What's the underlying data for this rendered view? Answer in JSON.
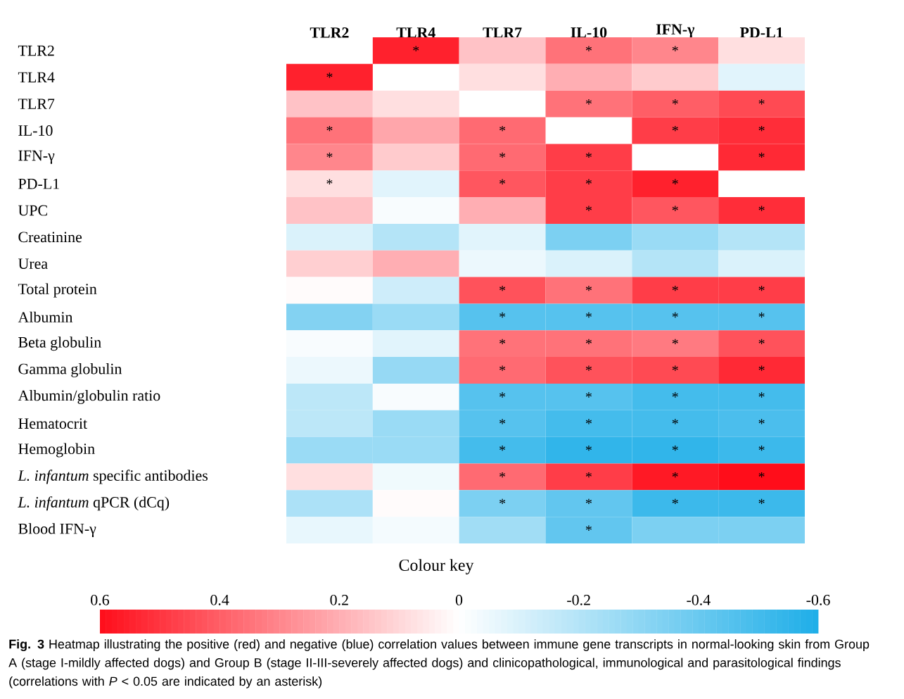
{
  "chart_data": {
    "type": "heatmap",
    "categories": [
      "TLR2",
      "TLR4",
      "TLR7",
      "IL-10",
      "IFN-γ",
      "PD-L1"
    ],
    "y_categories": [
      "TLR2",
      "TLR4",
      "TLR7",
      "IL-10",
      "IFN-γ",
      "PD-L1",
      "UPC",
      "Creatinine",
      "Urea",
      "Total protein",
      "Albumin",
      "Beta globulin",
      "Gamma globulin",
      "Albumin/globulin ratio",
      "Hematocrit",
      "Hemoglobin",
      "*L. infantum* specific antibodies",
      "*L. infantum* qPCR (dCq)",
      "Blood IFN-γ"
    ],
    "cells": [
      [
        null,
        0.55,
        0.15,
        0.35,
        0.3,
        0.08
      ],
      [
        0.55,
        null,
        0.08,
        0.2,
        0.13,
        -0.08
      ],
      [
        0.15,
        0.08,
        null,
        0.35,
        0.4,
        0.45
      ],
      [
        0.35,
        0.22,
        0.37,
        null,
        0.48,
        0.52
      ],
      [
        0.3,
        0.13,
        0.37,
        0.48,
        null,
        0.53
      ],
      [
        0.08,
        -0.08,
        0.42,
        0.48,
        0.55,
        null
      ],
      [
        0.15,
        -0.02,
        0.2,
        0.48,
        0.42,
        0.52
      ],
      [
        -0.1,
        -0.2,
        -0.08,
        -0.35,
        -0.27,
        -0.2
      ],
      [
        0.12,
        0.2,
        -0.05,
        -0.1,
        -0.2,
        -0.1
      ],
      [
        0.01,
        -0.13,
        0.43,
        0.35,
        0.48,
        0.48
      ],
      [
        -0.33,
        -0.27,
        -0.45,
        -0.45,
        -0.45,
        -0.45
      ],
      [
        -0.02,
        -0.08,
        0.35,
        0.35,
        0.33,
        0.43
      ],
      [
        -0.05,
        -0.28,
        0.37,
        0.43,
        0.45,
        0.53
      ],
      [
        -0.18,
        -0.02,
        -0.45,
        -0.45,
        -0.5,
        -0.5
      ],
      [
        -0.18,
        -0.27,
        -0.45,
        -0.5,
        -0.5,
        -0.48
      ],
      [
        -0.27,
        -0.27,
        -0.5,
        -0.55,
        -0.55,
        -0.52
      ],
      [
        0.08,
        -0.04,
        0.37,
        0.48,
        0.57,
        0.6
      ],
      [
        -0.22,
        0.01,
        -0.35,
        -0.42,
        -0.52,
        -0.52
      ],
      [
        -0.06,
        -0.03,
        -0.25,
        -0.42,
        -0.35,
        -0.35
      ]
    ],
    "cell_labels": [
      [
        null,
        "*",
        null,
        "*",
        "*",
        null
      ],
      [
        "*",
        null,
        null,
        null,
        null,
        null
      ],
      [
        null,
        null,
        null,
        "*",
        "*",
        "*"
      ],
      [
        "*",
        null,
        "*",
        null,
        "*",
        "*"
      ],
      [
        "*",
        null,
        "*",
        "*",
        null,
        "*"
      ],
      [
        "*",
        null,
        "*",
        "*",
        "*",
        null
      ],
      [
        null,
        null,
        null,
        "*",
        "*",
        "*"
      ],
      [
        null,
        null,
        null,
        null,
        null,
        null
      ],
      [
        null,
        null,
        null,
        null,
        null,
        null
      ],
      [
        null,
        null,
        "*",
        "*",
        "*",
        "*"
      ],
      [
        null,
        null,
        "*",
        "*",
        "*",
        "*"
      ],
      [
        null,
        null,
        "*",
        "*",
        "*",
        "*"
      ],
      [
        null,
        null,
        "*",
        "*",
        "*",
        "*"
      ],
      [
        null,
        null,
        "*",
        "*",
        "*",
        "*"
      ],
      [
        null,
        null,
        "*",
        "*",
        "*",
        "*"
      ],
      [
        null,
        null,
        "*",
        "*",
        "*",
        "*"
      ],
      [
        null,
        null,
        "*",
        "*",
        "*",
        "*"
      ],
      [
        null,
        null,
        "*",
        "*",
        "*",
        "*"
      ],
      [
        null,
        null,
        null,
        "*",
        null,
        null
      ]
    ],
    "clabel": "Colour key",
    "clim": [
      -0.6,
      0.6
    ],
    "cticks": [
      0.6,
      0.4,
      0.2,
      0,
      -0.2,
      -0.4,
      -0.6
    ],
    "annotations": [
      "**Fig. 3** Heatmap illustrating the positive (red) and negative (blue) correlation values between immune gene transcripts in normal-looking skin from Group A (stage I-mildly affected dogs) and Group B (stage II-III-severely affected dogs) and clinicopathological, immunological and parasitological findings (correlations with *P* < 0.05 are indicated by an asterisk)"
    ]
  }
}
